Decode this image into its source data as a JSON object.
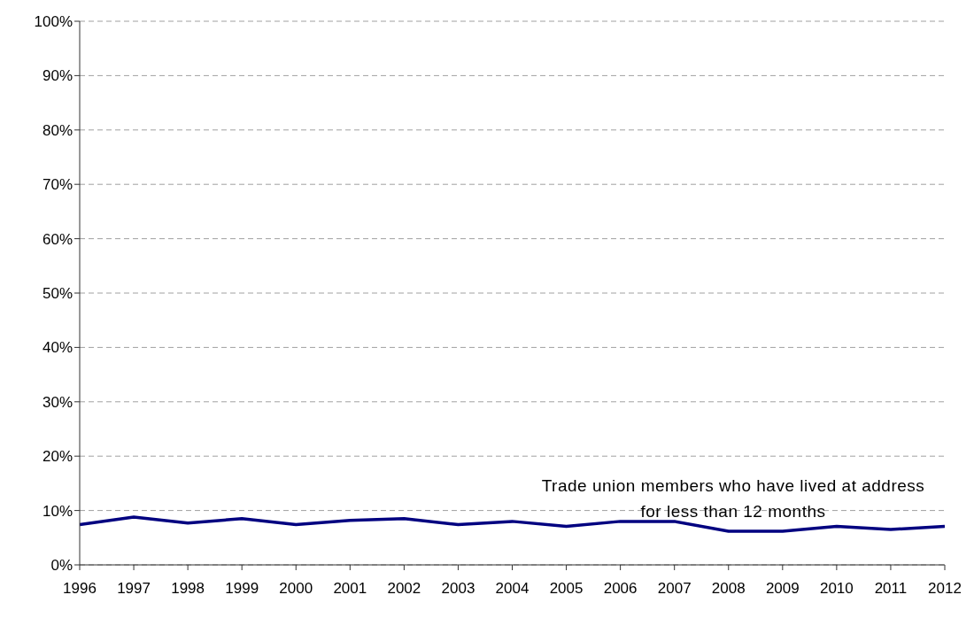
{
  "chart_data": {
    "type": "line",
    "x": [
      1996,
      1997,
      1998,
      1999,
      2000,
      2001,
      2002,
      2003,
      2004,
      2005,
      2006,
      2007,
      2008,
      2009,
      2010,
      2011,
      2012
    ],
    "series": [
      {
        "name": "Trade union members who have lived at address for less than 12 months",
        "color": "#000080",
        "values": [
          7.4,
          8.8,
          7.7,
          8.5,
          7.4,
          8.2,
          8.5,
          7.4,
          8.0,
          7.1,
          8.0,
          8.0,
          6.2,
          6.2,
          7.1,
          6.5,
          7.1
        ]
      }
    ],
    "xlim": [
      1996,
      2012
    ],
    "xticks": [
      1996,
      1997,
      1998,
      1999,
      2000,
      2001,
      2002,
      2003,
      2004,
      2005,
      2006,
      2007,
      2008,
      2009,
      2010,
      2011,
      2012
    ],
    "ylim": [
      0,
      100
    ],
    "yticks": [
      {
        "value": 0,
        "label": "0%"
      },
      {
        "value": 10,
        "label": "10%"
      },
      {
        "value": 20,
        "label": "20%"
      },
      {
        "value": 30,
        "label": "30%"
      },
      {
        "value": 40,
        "label": "40%"
      },
      {
        "value": 50,
        "label": "50%"
      },
      {
        "value": 60,
        "label": "60%"
      },
      {
        "value": 70,
        "label": "70%"
      },
      {
        "value": 80,
        "label": "80%"
      },
      {
        "value": 90,
        "label": "90%"
      },
      {
        "value": 100,
        "label": "100%"
      }
    ],
    "grid": "y",
    "marker": "none",
    "line_style": "solid"
  }
}
